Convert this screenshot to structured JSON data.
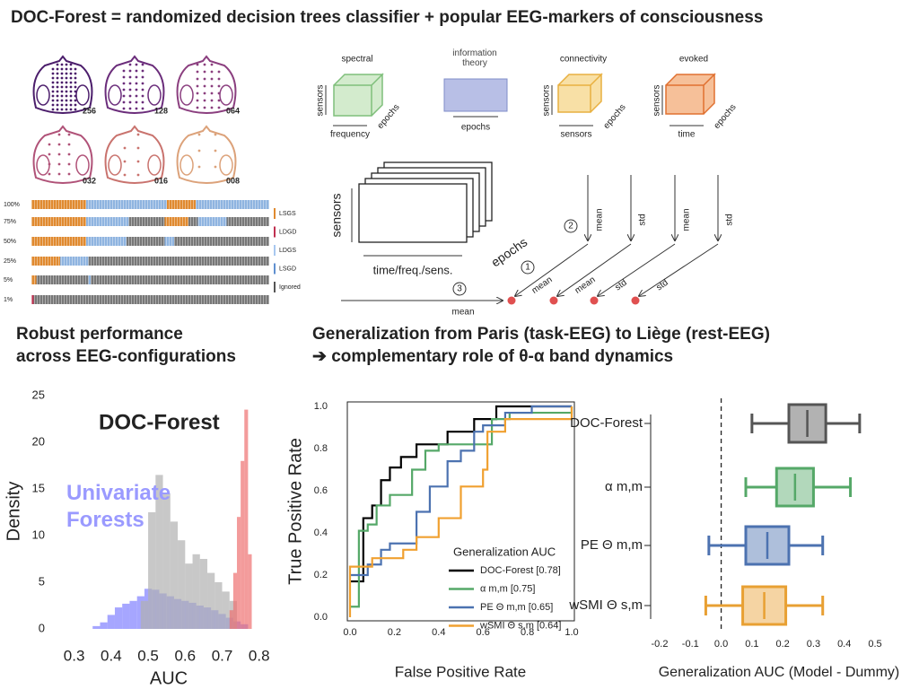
{
  "title": "DOC-Forest = randomized decision trees classifier + popular EEG-markers of consciousness",
  "montages": [
    "256",
    "128",
    "064",
    "032",
    "016",
    "008"
  ],
  "coverage": {
    "rows": [
      "100%",
      "75%",
      "50%",
      "25%",
      "5%",
      "1%"
    ],
    "legend": [
      "LSGS",
      "LDGD",
      "LDGS",
      "LSGD",
      "Ignored"
    ]
  },
  "markers": [
    {
      "name": "spectral",
      "axes": [
        "sensors",
        "epochs",
        "frequency"
      ]
    },
    {
      "name": "information theory",
      "axes": [
        "epochs"
      ]
    },
    {
      "name": "connectivity",
      "axes": [
        "sensors",
        "epochs",
        "sensors"
      ]
    },
    {
      "name": "evoked",
      "axes": [
        "sensors",
        "epochs",
        "time"
      ]
    }
  ],
  "reduction": {
    "axes": [
      "sensors",
      "time/freq./sens.",
      "epochs"
    ],
    "steps": [
      "1",
      "2",
      "3"
    ],
    "ops": [
      "mean",
      "std",
      "mean",
      "std",
      "mean",
      "mean",
      "std",
      "std",
      "mean"
    ]
  },
  "headings": {
    "left": [
      "Robust performance",
      "across EEG-configurations"
    ],
    "right": [
      "Generalization from Paris (task-EEG) to Liège (rest-EEG)",
      "➔ complementary role of θ-α band dynamics"
    ]
  },
  "chart_data": [
    {
      "type": "histogram",
      "xlabel": "AUC",
      "ylabel": "Density",
      "annotations": [
        {
          "text": "DOC-Forest",
          "color": "#f0a0a0"
        },
        {
          "text": "Univariate Forests",
          "color": "#9a9aff"
        }
      ],
      "xlim": [
        0.25,
        0.82
      ],
      "xticks": [
        0.3,
        0.4,
        0.5,
        0.6,
        0.7,
        0.8
      ],
      "ylim": [
        0,
        25
      ],
      "yticks": [
        0,
        5,
        10,
        15,
        20,
        25
      ],
      "series": [
        {
          "color": "#8080ff",
          "bins": [
            0.35,
            0.37,
            0.39,
            0.41,
            0.43,
            0.45,
            0.47,
            0.49,
            0.51,
            0.53,
            0.55,
            0.57,
            0.59,
            0.61,
            0.63,
            0.65,
            0.67,
            0.69,
            0.71,
            0.73,
            0.75,
            0.77
          ],
          "values": [
            0.3,
            0.7,
            1.5,
            2.3,
            2.7,
            3.0,
            3.5,
            4.3,
            4.2,
            3.8,
            3.5,
            3.2,
            3.0,
            2.8,
            2.5,
            2.3,
            2.0,
            1.6,
            1.2,
            0.8,
            0.5
          ]
        },
        {
          "color": "#b0b0b0",
          "bins": [
            0.48,
            0.5,
            0.52,
            0.54,
            0.56,
            0.58,
            0.6,
            0.62,
            0.64,
            0.66,
            0.68,
            0.7,
            0.72,
            0.74
          ],
          "values": [
            3,
            12.5,
            16.5,
            14.5,
            11.5,
            9.5,
            7,
            8,
            7.5,
            6,
            5,
            4,
            3
          ]
        },
        {
          "color": "#ee7070",
          "bins": [
            0.72,
            0.73,
            0.74,
            0.75,
            0.76,
            0.77,
            0.78
          ],
          "values": [
            2,
            6,
            12,
            18,
            23.5,
            8
          ]
        }
      ]
    },
    {
      "type": "line",
      "xlabel": "False Positive Rate",
      "ylabel": "True Positive Rate",
      "legend_title": "Generalization AUC",
      "xlim": [
        0,
        1
      ],
      "ylim": [
        0,
        1
      ],
      "xticks": [
        {
          "value": 0,
          "label": "0.0"
        },
        0.2,
        0.4,
        0.6,
        0.8,
        {
          "value": 1,
          "label": "1.0"
        }
      ],
      "yticks": [
        {
          "value": 0,
          "label": "0.0"
        },
        0.2,
        0.4,
        0.6,
        0.8,
        {
          "value": 1,
          "label": "1.0"
        }
      ],
      "series": [
        {
          "name": "DOC-Forest [0.78]",
          "color": "#000000",
          "x": [
            0,
            0.06,
            0.06,
            0.1,
            0.1,
            0.14,
            0.14,
            0.18,
            0.18,
            0.23,
            0.23,
            0.3,
            0.3,
            0.44,
            0.44,
            0.56,
            0.56,
            0.66,
            0.66,
            1
          ],
          "values": [
            0.17,
            0.17,
            0.47,
            0.47,
            0.53,
            0.53,
            0.65,
            0.65,
            0.71,
            0.71,
            0.76,
            0.76,
            0.82,
            0.82,
            0.88,
            0.88,
            0.94,
            0.94,
            1,
            1
          ]
        },
        {
          "name": "α m,m [0.75]",
          "color": "#55a868",
          "x": [
            0,
            0.04,
            0.04,
            0.08,
            0.08,
            0.12,
            0.12,
            0.18,
            0.18,
            0.28,
            0.28,
            0.34,
            0.34,
            0.4,
            0.4,
            0.64,
            0.64,
            0.72,
            0.72,
            1,
            1
          ],
          "values": [
            0.05,
            0.05,
            0.41,
            0.41,
            0.44,
            0.44,
            0.53,
            0.53,
            0.58,
            0.58,
            0.7,
            0.7,
            0.79,
            0.79,
            0.82,
            0.82,
            0.94,
            0.94,
            0.97,
            0.97,
            1
          ]
        },
        {
          "name": "PE Θ m,m [0.65]",
          "color": "#4c72b0",
          "x": [
            0,
            0.08,
            0.08,
            0.14,
            0.14,
            0.18,
            0.18,
            0.3,
            0.3,
            0.36,
            0.36,
            0.44,
            0.44,
            0.5,
            0.5,
            0.56,
            0.56,
            0.6,
            0.6,
            0.7,
            0.7,
            0.82,
            0.82,
            1
          ],
          "values": [
            0.2,
            0.2,
            0.25,
            0.25,
            0.32,
            0.32,
            0.35,
            0.35,
            0.5,
            0.5,
            0.62,
            0.62,
            0.74,
            0.74,
            0.79,
            0.79,
            0.88,
            0.88,
            0.91,
            0.91,
            0.97,
            0.97,
            1,
            1
          ]
        },
        {
          "name": "wSMI Θ s,m [0.64]",
          "color": "#f0a030",
          "x": [
            0,
            0,
            0.1,
            0.1,
            0.24,
            0.24,
            0.3,
            0.3,
            0.4,
            0.4,
            0.5,
            0.5,
            0.6,
            0.6,
            0.62,
            0.62,
            0.7,
            0.7,
            1,
            1
          ],
          "values": [
            0,
            0.24,
            0.24,
            0.28,
            0.28,
            0.32,
            0.32,
            0.38,
            0.38,
            0.47,
            0.47,
            0.62,
            0.62,
            0.7,
            0.7,
            0.88,
            0.88,
            0.94,
            0.94,
            1
          ]
        }
      ]
    },
    {
      "type": "box",
      "xlabel": "Generalization AUC (Model - Dummy)",
      "reference_x": 0,
      "xlim": [
        -0.2,
        0.5
      ],
      "xticks": [
        -0.2,
        -0.1,
        {
          "value": 0,
          "label": "0.0"
        },
        0.1,
        0.2,
        0.3,
        0.4,
        0.5
      ],
      "categories": [
        "DOC-Forest",
        "α m,m",
        "PE Θ m,m",
        "wSMI Θ s,m"
      ],
      "colors": [
        "#555555",
        "#55a868",
        "#4c72b0",
        "#e8a033"
      ],
      "boxes": [
        {
          "whislo": 0.1,
          "q1": 0.22,
          "med": 0.28,
          "q3": 0.34,
          "whishi": 0.45
        },
        {
          "whislo": 0.08,
          "q1": 0.18,
          "med": 0.24,
          "q3": 0.3,
          "whishi": 0.42
        },
        {
          "whislo": -0.04,
          "q1": 0.08,
          "med": 0.15,
          "q3": 0.22,
          "whishi": 0.33
        },
        {
          "whislo": -0.05,
          "q1": 0.07,
          "med": 0.14,
          "q3": 0.21,
          "whishi": 0.33
        }
      ]
    }
  ]
}
